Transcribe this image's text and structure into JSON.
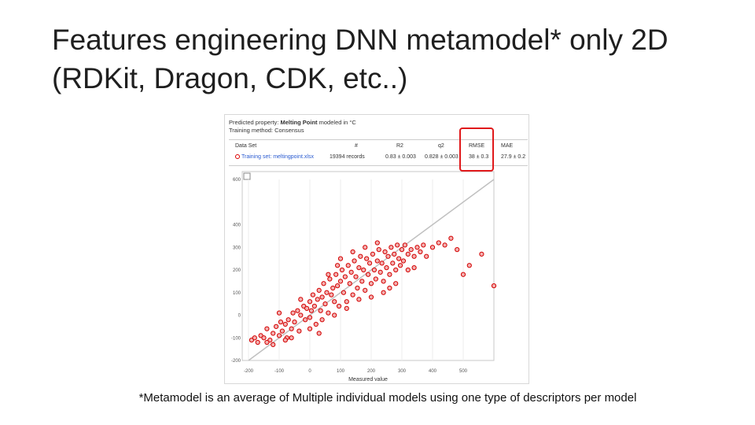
{
  "slide": {
    "title_line1": "Features engineering DNN metamodel* only 2D",
    "title_line2": "(RDKit, Dragon, CDK, etc..)",
    "footnote": "*Metamodel is an average of  Multiple individual models using one type of descriptors per model"
  },
  "figure": {
    "predicted_label": "Predicted property:",
    "predicted_value": "Melting Point",
    "predicted_suffix": "modeled in °C",
    "training_method": "Training method: Consensus",
    "columns": [
      "Data Set",
      "#",
      "R2",
      "q2",
      "RMSE",
      "MAE"
    ],
    "row": {
      "data_set": "Training set: meltingpoint.xlsx",
      "count": "19394 records",
      "r2": "0.83 ± 0.003",
      "q2": "0.828 ± 0.003",
      "rmse": "38 ± 0.3",
      "mae": "27.9 ± 0.2"
    },
    "highlight_color": "#e0191b",
    "point_color": "#d40000"
  },
  "chart_data": {
    "type": "scatter",
    "xlabel": "Measured value",
    "ylabel": "",
    "xlim": [
      -200,
      600
    ],
    "ylim": [
      -200,
      600
    ],
    "x_ticks": [
      -200,
      -100,
      0,
      100,
      200,
      300,
      400,
      500
    ],
    "y_ticks": [
      -200,
      -100,
      0,
      100,
      200,
      300,
      400,
      600
    ],
    "series": [
      {
        "points": [
          [
            -190,
            -110
          ],
          [
            -180,
            -100
          ],
          [
            -170,
            -120
          ],
          [
            -160,
            -90
          ],
          [
            -150,
            -100
          ],
          [
            -140,
            -60
          ],
          [
            -130,
            -110
          ],
          [
            -120,
            -80
          ],
          [
            -110,
            -50
          ],
          [
            -100,
            -90
          ],
          [
            -95,
            -30
          ],
          [
            -90,
            -70
          ],
          [
            -80,
            -40
          ],
          [
            -75,
            -100
          ],
          [
            -70,
            -20
          ],
          [
            -60,
            -60
          ],
          [
            -55,
            10
          ],
          [
            -50,
            -30
          ],
          [
            -40,
            20
          ],
          [
            -35,
            -70
          ],
          [
            -30,
            0
          ],
          [
            -20,
            40
          ],
          [
            -15,
            -20
          ],
          [
            -10,
            30
          ],
          [
            0,
            60
          ],
          [
            0,
            -10
          ],
          [
            5,
            20
          ],
          [
            10,
            90
          ],
          [
            15,
            40
          ],
          [
            20,
            -40
          ],
          [
            25,
            70
          ],
          [
            30,
            110
          ],
          [
            35,
            20
          ],
          [
            40,
            80
          ],
          [
            45,
            140
          ],
          [
            50,
            50
          ],
          [
            55,
            100
          ],
          [
            60,
            10
          ],
          [
            65,
            160
          ],
          [
            70,
            90
          ],
          [
            75,
            120
          ],
          [
            80,
            60
          ],
          [
            85,
            180
          ],
          [
            90,
            130
          ],
          [
            95,
            40
          ],
          [
            100,
            150
          ],
          [
            105,
            200
          ],
          [
            110,
            100
          ],
          [
            115,
            170
          ],
          [
            120,
            60
          ],
          [
            125,
            220
          ],
          [
            130,
            140
          ],
          [
            135,
            190
          ],
          [
            140,
            90
          ],
          [
            145,
            240
          ],
          [
            150,
            170
          ],
          [
            155,
            120
          ],
          [
            160,
            210
          ],
          [
            165,
            260
          ],
          [
            170,
            150
          ],
          [
            175,
            200
          ],
          [
            180,
            110
          ],
          [
            185,
            250
          ],
          [
            190,
            180
          ],
          [
            195,
            230
          ],
          [
            200,
            140
          ],
          [
            205,
            270
          ],
          [
            210,
            200
          ],
          [
            215,
            160
          ],
          [
            220,
            240
          ],
          [
            225,
            290
          ],
          [
            230,
            190
          ],
          [
            235,
            230
          ],
          [
            240,
            150
          ],
          [
            245,
            280
          ],
          [
            250,
            210
          ],
          [
            255,
            260
          ],
          [
            260,
            180
          ],
          [
            265,
            300
          ],
          [
            270,
            230
          ],
          [
            275,
            270
          ],
          [
            280,
            200
          ],
          [
            285,
            310
          ],
          [
            290,
            250
          ],
          [
            295,
            220
          ],
          [
            300,
            290
          ],
          [
            305,
            240
          ],
          [
            310,
            310
          ],
          [
            320,
            270
          ],
          [
            330,
            290
          ],
          [
            340,
            260
          ],
          [
            350,
            300
          ],
          [
            360,
            280
          ],
          [
            370,
            310
          ],
          [
            380,
            260
          ],
          [
            400,
            300
          ],
          [
            420,
            320
          ],
          [
            440,
            310
          ],
          [
            460,
            340
          ],
          [
            480,
            290
          ],
          [
            500,
            180
          ],
          [
            520,
            220
          ],
          [
            560,
            270
          ],
          [
            600,
            130
          ],
          [
            -100,
            10
          ],
          [
            -60,
            -100
          ],
          [
            0,
            -60
          ],
          [
            40,
            -20
          ],
          [
            80,
            0
          ],
          [
            120,
            30
          ],
          [
            160,
            70
          ],
          [
            200,
            80
          ],
          [
            240,
            100
          ],
          [
            280,
            140
          ],
          [
            320,
            200
          ],
          [
            -140,
            -120
          ],
          [
            -120,
            -130
          ],
          [
            -80,
            -110
          ],
          [
            60,
            180
          ],
          [
            100,
            250
          ],
          [
            140,
            280
          ],
          [
            180,
            300
          ],
          [
            220,
            320
          ],
          [
            30,
            -80
          ],
          [
            -30,
            70
          ],
          [
            90,
            220
          ],
          [
            260,
            120
          ],
          [
            340,
            210
          ]
        ]
      }
    ],
    "identity_line": true
  }
}
